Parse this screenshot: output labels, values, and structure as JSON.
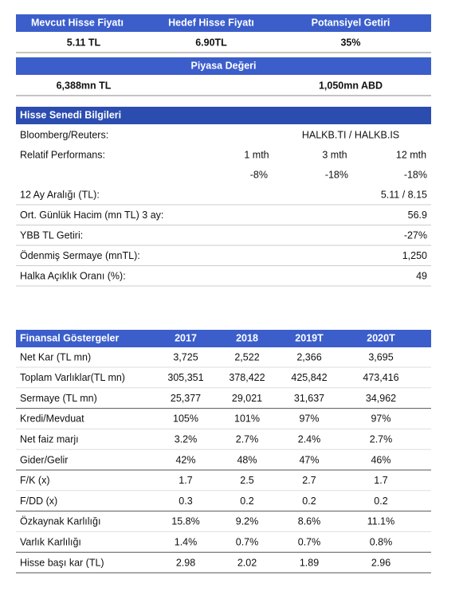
{
  "price_table": {
    "headers": [
      "Mevcut Hisse Fiyatı",
      "Hedef Hisse Fiyatı",
      "Potansiyel Getiri"
    ],
    "values": [
      "5.11 TL",
      "6.90TL",
      "35%"
    ]
  },
  "market_cap": {
    "title": "Piyasa Değeri",
    "values": [
      "6,388mn TL",
      "1,050mn ABD"
    ]
  },
  "stock_info": {
    "title": "Hisse Senedi Bilgileri",
    "bloomberg": [
      "Bloomberg/Reuters:",
      "HALKB.TI / HALKB.IS"
    ],
    "relative_performance": {
      "label": "Relatif Performans:",
      "periods": [
        "1 mth",
        "3 mth",
        "12 mth"
      ],
      "values": [
        "-8%",
        "-18%",
        "-18%"
      ]
    },
    "rows": [
      [
        "12 Ay Aralığı (TL):",
        "5.11 / 8.15"
      ],
      [
        "Ort. Günlük Hacim (mn TL) 3 ay:",
        "56.9"
      ],
      [
        "YBB TL Getiri:",
        "-27%"
      ],
      [
        "Ödenmiş Sermaye (mnTL):",
        "1,250"
      ],
      [
        "Halka Açıklık Oranı (%):",
        "49"
      ]
    ]
  },
  "financials": {
    "title": "Finansal Göstergeler",
    "columns": [
      "2017",
      "2018",
      "2019T",
      "2020T"
    ],
    "rows": [
      [
        "Net Kar (TL mn)",
        "3,725",
        "2,522",
        "2,366",
        "3,695"
      ],
      [
        "Toplam Varlıklar(TL mn)",
        "305,351",
        "378,422",
        "425,842",
        "473,416"
      ],
      [
        "Sermaye (TL mn)",
        "25,377",
        "29,021",
        "31,637",
        "34,962"
      ],
      [
        "Kredi/Mevduat",
        "105%",
        "101%",
        "97%",
        "97%"
      ],
      [
        "Net faiz marjı",
        "3.2%",
        "2.7%",
        "2.4%",
        "2.7%"
      ],
      [
        "Gider/Gelir",
        "42%",
        "48%",
        "47%",
        "46%"
      ],
      [
        "F/K (x)",
        "1.7",
        "2.5",
        "2.7",
        "1.7"
      ],
      [
        "F/DD (x)",
        "0.3",
        "0.2",
        "0.2",
        "0.2"
      ],
      [
        "Özkaynak Karlılığı",
        "15.8%",
        "9.2%",
        "8.6%",
        "11.1%"
      ],
      [
        "Varlık Karlılığı",
        "1.4%",
        "0.7%",
        "0.7%",
        "0.8%"
      ],
      [
        "Hisse başı kar (TL)",
        "2.98",
        "2.02",
        "1.89",
        "2.96"
      ]
    ]
  }
}
